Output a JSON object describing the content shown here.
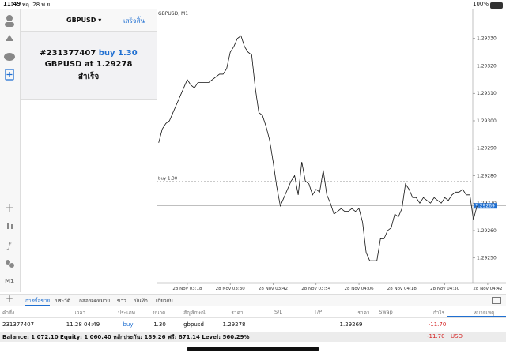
{
  "status_bar": {
    "time": "11:49",
    "date": "พฤ. 28 พ.ย.",
    "battery": "100%"
  },
  "order_panel": {
    "symbol": "GBPUSD",
    "done": "เสร็จสิ้น",
    "ticket": "#231377407",
    "action": "buy 1.30",
    "symbol_at": "GBPUSD at",
    "price": "1.29278",
    "status": "สำเร็จ"
  },
  "sidebar": {
    "timeframe": "M1"
  },
  "chart_data": {
    "type": "line",
    "title": "GBPUSD, M1",
    "color": "#111111",
    "x": [
      10,
      11,
      12,
      13,
      14,
      15,
      16,
      17,
      18,
      19,
      20,
      21,
      22,
      23,
      24,
      25,
      26,
      27,
      28,
      29,
      30,
      31,
      32,
      33,
      34,
      35,
      36,
      37,
      38,
      39,
      40,
      41,
      42,
      43,
      44,
      45,
      46,
      47,
      48,
      49,
      50,
      51,
      52,
      53,
      54,
      55,
      56,
      57,
      58,
      59,
      60,
      61,
      62,
      63,
      64,
      65,
      66,
      67,
      68,
      69,
      70,
      71,
      72,
      73,
      74,
      75,
      76,
      77,
      78,
      79,
      80,
      81,
      82,
      83,
      84,
      85,
      86,
      87,
      88,
      89,
      90,
      91,
      92,
      93,
      94,
      95,
      96,
      97,
      98,
      99
    ],
    "values": [
      1.29292,
      1.29297,
      1.29299,
      1.293,
      1.29303,
      1.29306,
      1.29309,
      1.29312,
      1.29315,
      1.29313,
      1.29312,
      1.29314,
      1.29314,
      1.29314,
      1.29314,
      1.29315,
      1.29316,
      1.29317,
      1.29317,
      1.29319,
      1.29325,
      1.29327,
      1.2933,
      1.29331,
      1.29327,
      1.29325,
      1.29324,
      1.29312,
      1.29303,
      1.29302,
      1.29298,
      1.29293,
      1.29285,
      1.29276,
      1.29269,
      1.29272,
      1.29275,
      1.29278,
      1.2928,
      1.29273,
      1.29285,
      1.29278,
      1.29277,
      1.29273,
      1.29275,
      1.29274,
      1.29282,
      1.29273,
      1.2927,
      1.29266,
      1.29267,
      1.29268,
      1.29267,
      1.29267,
      1.29268,
      1.29267,
      1.29268,
      1.29263,
      1.29252,
      1.29249,
      1.29249,
      1.29249,
      1.29257,
      1.29257,
      1.2926,
      1.29261,
      1.29266,
      1.29265,
      1.29268,
      1.29277,
      1.29275,
      1.29272,
      1.29272,
      1.2927,
      1.29272,
      1.29271,
      1.2927,
      1.29272,
      1.29271,
      1.2927,
      1.29272,
      1.29271,
      1.29273,
      1.29274,
      1.29274,
      1.29275,
      1.29273,
      1.29273,
      1.29264,
      1.29269
    ],
    "xlim": [
      9.4,
      107.1
    ],
    "xticks": [
      {
        "value": 18,
        "label": "28 Nov 03:18"
      },
      {
        "value": 30,
        "label": "28 Nov 03:30"
      },
      {
        "value": 42,
        "label": "28 Nov 03:42"
      },
      {
        "value": 54,
        "label": "28 Nov 03:54"
      },
      {
        "value": 66,
        "label": "28 Nov 04:06"
      },
      {
        "value": 78,
        "label": "28 Nov 04:18"
      },
      {
        "value": 90,
        "label": "28 Nov 04:30"
      },
      {
        "value": 102,
        "label": "28 Nov 04:42"
      }
    ],
    "ylim": [
      1.29241,
      1.2934
    ],
    "yticks": [
      {
        "value": 1.2925,
        "label": "1.29250"
      },
      {
        "value": 1.2926,
        "label": "1.29260"
      },
      {
        "value": 1.2927,
        "label": "1.29270"
      },
      {
        "value": 1.2928,
        "label": "1.29280"
      },
      {
        "value": 1.2929,
        "label": "1.29290"
      },
      {
        "value": 1.293,
        "label": "1.29300"
      },
      {
        "value": 1.2931,
        "label": "1.29310"
      },
      {
        "value": 1.2932,
        "label": "1.29320"
      },
      {
        "value": 1.2933,
        "label": "1.29330"
      }
    ],
    "order_line": {
      "label": "buy 1.30",
      "value": 1.29278
    },
    "bid": 1.29269,
    "bid_color": "#1f6fd1"
  },
  "tabs": [
    "การซื้อขาย",
    "ประวัติ",
    "กล่องจดหมาย",
    "ข่าว",
    "บันทึก",
    "เกี่ยวกับ"
  ],
  "table": {
    "columns": [
      "คำสั่ง",
      "เวลา",
      "ประเภท",
      "ขนาด",
      "สัญลักษณ์",
      "ราคา",
      "S/L",
      "T/P",
      "ราคา",
      "Swap",
      "กำไร",
      "หมายเหตุ"
    ],
    "row": {
      "order": "231377407",
      "time": "11.28 04:49",
      "type": "buy",
      "size": "1.30",
      "symbol": "gbpusd",
      "price": "1.29278",
      "price_current": "1.29269",
      "profit": "-11.70"
    }
  },
  "balance_bar": {
    "summary": "Balance: 1 072.10 Equity: 1 060.40 หลักประกัน: 189.26 ฟรี: 871.14 Level: 560.29%",
    "total": "-11.70",
    "currency": "USD"
  }
}
